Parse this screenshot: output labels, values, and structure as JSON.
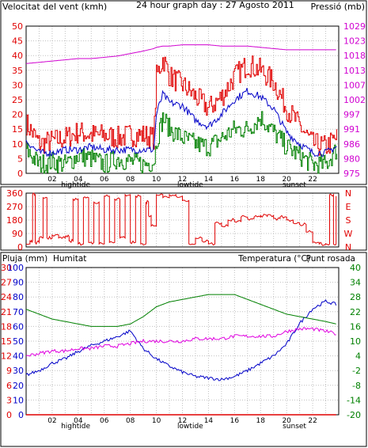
{
  "colors": {
    "wind_avg": "#0000c8",
    "wind_gust": "#e00000",
    "wind_min": "#008000",
    "pressure": "#d000d0",
    "direction": "#e00000",
    "rain": "#e00000",
    "humidity": "#0000c8",
    "temperature": "#008000",
    "dewpoint": "#e000e0",
    "grid": "#c0c0c0",
    "frame": "#000000"
  },
  "chart_data": [
    {
      "type": "line",
      "title": "24 hour graph day : 27 Agosto 2011",
      "left_axis_label": "Velocitat del vent (kmh)",
      "right_axis_label": "Pressió (mb)",
      "xlim": [
        0,
        24
      ],
      "ylim_left": [
        0,
        50
      ],
      "ylim_right": [
        975,
        1034
      ],
      "y_ticks_left": [
        0,
        5,
        10,
        15,
        20,
        25,
        30,
        35,
        40,
        45,
        50
      ],
      "y_ticks_right": [
        975,
        980,
        986,
        991,
        997,
        1002,
        1007,
        1013,
        1018,
        1023,
        1029
      ],
      "x_tick_labels": [
        "02",
        "04",
        "06",
        "08",
        "10",
        "12",
        "14",
        "16",
        "18",
        "20",
        "22"
      ],
      "x_tick_positions": [
        2,
        4,
        6,
        8,
        10,
        12,
        14,
        16,
        18,
        20,
        22
      ],
      "x_events": [
        {
          "x": 3.8,
          "label": "hightide"
        },
        {
          "x": 12.6,
          "label": "lowtide"
        },
        {
          "x": 20.6,
          "label": "sunset"
        }
      ],
      "x": [
        0,
        1,
        2,
        3,
        4,
        5,
        6,
        7,
        8,
        9,
        9.8,
        10,
        10.5,
        11,
        12,
        13,
        14,
        15,
        16,
        17,
        18,
        19,
        20,
        21,
        22,
        23,
        23.8
      ],
      "series": [
        {
          "key": "gust",
          "axis": "left",
          "values": [
            17,
            10,
            11,
            12,
            14,
            13,
            13,
            12,
            13,
            13,
            12,
            33,
            39,
            33,
            30,
            26,
            22,
            26,
            33,
            37,
            35,
            31,
            22,
            16,
            10,
            9,
            12
          ]
        },
        {
          "key": "avg",
          "axis": "left",
          "values": [
            11,
            7,
            7,
            8,
            8,
            9,
            8,
            8,
            8,
            8,
            8,
            20,
            27,
            24,
            23,
            18,
            16,
            20,
            25,
            28,
            26,
            22,
            14,
            10,
            7,
            7,
            9
          ]
        },
        {
          "key": "min",
          "axis": "left",
          "values": [
            8,
            3,
            4,
            3,
            6,
            5,
            3,
            5,
            4,
            3,
            4,
            11,
            19,
            15,
            12,
            10,
            9,
            12,
            15,
            15,
            19,
            14,
            9,
            6,
            3,
            3,
            8
          ]
        },
        {
          "key": "pressure",
          "axis": "right",
          "values": [
            1019,
            1019.5,
            1020,
            1020.5,
            1021,
            1021,
            1021.5,
            1022,
            1023,
            1024,
            1025,
            1025.5,
            1026,
            1026,
            1026.5,
            1026.5,
            1026.5,
            1026,
            1026,
            1026,
            1025.5,
            1025,
            1024.5,
            1024.5,
            1024.5,
            1024.5,
            1024.5
          ]
        }
      ]
    },
    {
      "type": "line",
      "xlim": [
        0,
        24
      ],
      "ylim_left": [
        0,
        360
      ],
      "y_ticks_left": [
        0,
        90,
        180,
        270,
        360
      ],
      "right_labels": [
        "N",
        "W",
        "S",
        "E",
        "N"
      ],
      "series": [
        {
          "key": "direction",
          "x": [
            0,
            0.3,
            0.5,
            0.7,
            1,
            1.3,
            1.6,
            2,
            2.5,
            3,
            3.3,
            3.6,
            4,
            4.4,
            4.8,
            5.2,
            5.6,
            6,
            6.4,
            6.8,
            7.2,
            7.6,
            8,
            8.4,
            8.8,
            9.2,
            9.4,
            9.6,
            10,
            10.5,
            11,
            11.5,
            12,
            12.5,
            13,
            13.5,
            14,
            14.5,
            15,
            15.5,
            16,
            16.5,
            17,
            17.5,
            18,
            18.5,
            19,
            19.5,
            20,
            20.5,
            21,
            21.5,
            22,
            22.5,
            23,
            23.3,
            23.6,
            23.8
          ],
          "values": [
            20,
            40,
            350,
            30,
            60,
            330,
            60,
            80,
            60,
            70,
            40,
            320,
            20,
            330,
            30,
            300,
            20,
            340,
            30,
            320,
            60,
            350,
            30,
            340,
            20,
            300,
            210,
            140,
            350,
            330,
            350,
            340,
            310,
            20,
            60,
            40,
            20,
            160,
            140,
            180,
            170,
            200,
            190,
            200,
            210,
            210,
            190,
            200,
            180,
            160,
            150,
            100,
            30,
            20,
            20,
            350,
            20,
            340
          ]
        }
      ]
    },
    {
      "type": "line",
      "left_axis_label": "Pluja (mm)",
      "humidity_label": "Humitat",
      "right_axis_label_a": "Temperatura (°C)",
      "right_axis_label_b": "Punt rosada",
      "xlim": [
        0,
        24
      ],
      "ylim_rain": [
        0,
        30
      ],
      "ylim_humidity": [
        0,
        100
      ],
      "ylim_temp": [
        -20,
        40
      ],
      "y_ticks_rain": [
        0,
        3,
        6,
        9,
        12,
        15,
        18,
        21,
        24,
        27,
        30
      ],
      "y_ticks_humidity": [
        0,
        10,
        20,
        30,
        40,
        50,
        60,
        70,
        80,
        90,
        100
      ],
      "y_ticks_temp": [
        -20,
        -14,
        -8,
        -2,
        4,
        10,
        16,
        22,
        28,
        34,
        40
      ],
      "x_tick_labels": [
        "02",
        "04",
        "06",
        "08",
        "10",
        "12",
        "14",
        "16",
        "18",
        "20",
        "22"
      ],
      "x_tick_positions": [
        2,
        4,
        6,
        8,
        10,
        12,
        14,
        16,
        18,
        20,
        22
      ],
      "x_events": [
        {
          "x": 3.8,
          "label": "hightide"
        },
        {
          "x": 12.6,
          "label": "lowtide"
        },
        {
          "x": 20.6,
          "label": "sunset"
        }
      ],
      "x": [
        0,
        1,
        2,
        3,
        4,
        5,
        6,
        7,
        8,
        9,
        10,
        11,
        12,
        13,
        14,
        15,
        16,
        17,
        18,
        19,
        20,
        21,
        22,
        23,
        23.8
      ],
      "series": [
        {
          "key": "rain",
          "axis": "rain",
          "values": [
            0,
            0,
            0,
            0,
            0,
            0,
            0,
            0,
            0,
            0,
            0,
            0,
            0,
            0,
            0,
            0,
            0,
            0,
            0,
            0,
            0,
            0,
            0,
            0,
            0
          ]
        },
        {
          "key": "humidity",
          "axis": "humidity",
          "values": [
            27,
            30,
            35,
            38,
            43,
            47,
            50,
            53,
            57,
            45,
            38,
            33,
            29,
            26,
            25,
            24,
            26,
            30,
            35,
            40,
            48,
            62,
            72,
            77,
            75
          ]
        },
        {
          "key": "temperature",
          "axis": "temp",
          "values": [
            23,
            21,
            19,
            18,
            17,
            16,
            16,
            16,
            17,
            20,
            24,
            26,
            27,
            28,
            29,
            29,
            29,
            27,
            25,
            23,
            21,
            20,
            19,
            18,
            17
          ]
        },
        {
          "key": "dewpoint",
          "axis": "temp",
          "values": [
            4,
            5,
            6,
            6,
            7,
            7,
            8,
            8,
            9,
            10,
            10,
            10,
            10,
            11,
            11,
            11,
            12,
            12,
            12,
            12,
            14,
            15,
            15,
            14,
            13
          ]
        }
      ]
    }
  ]
}
